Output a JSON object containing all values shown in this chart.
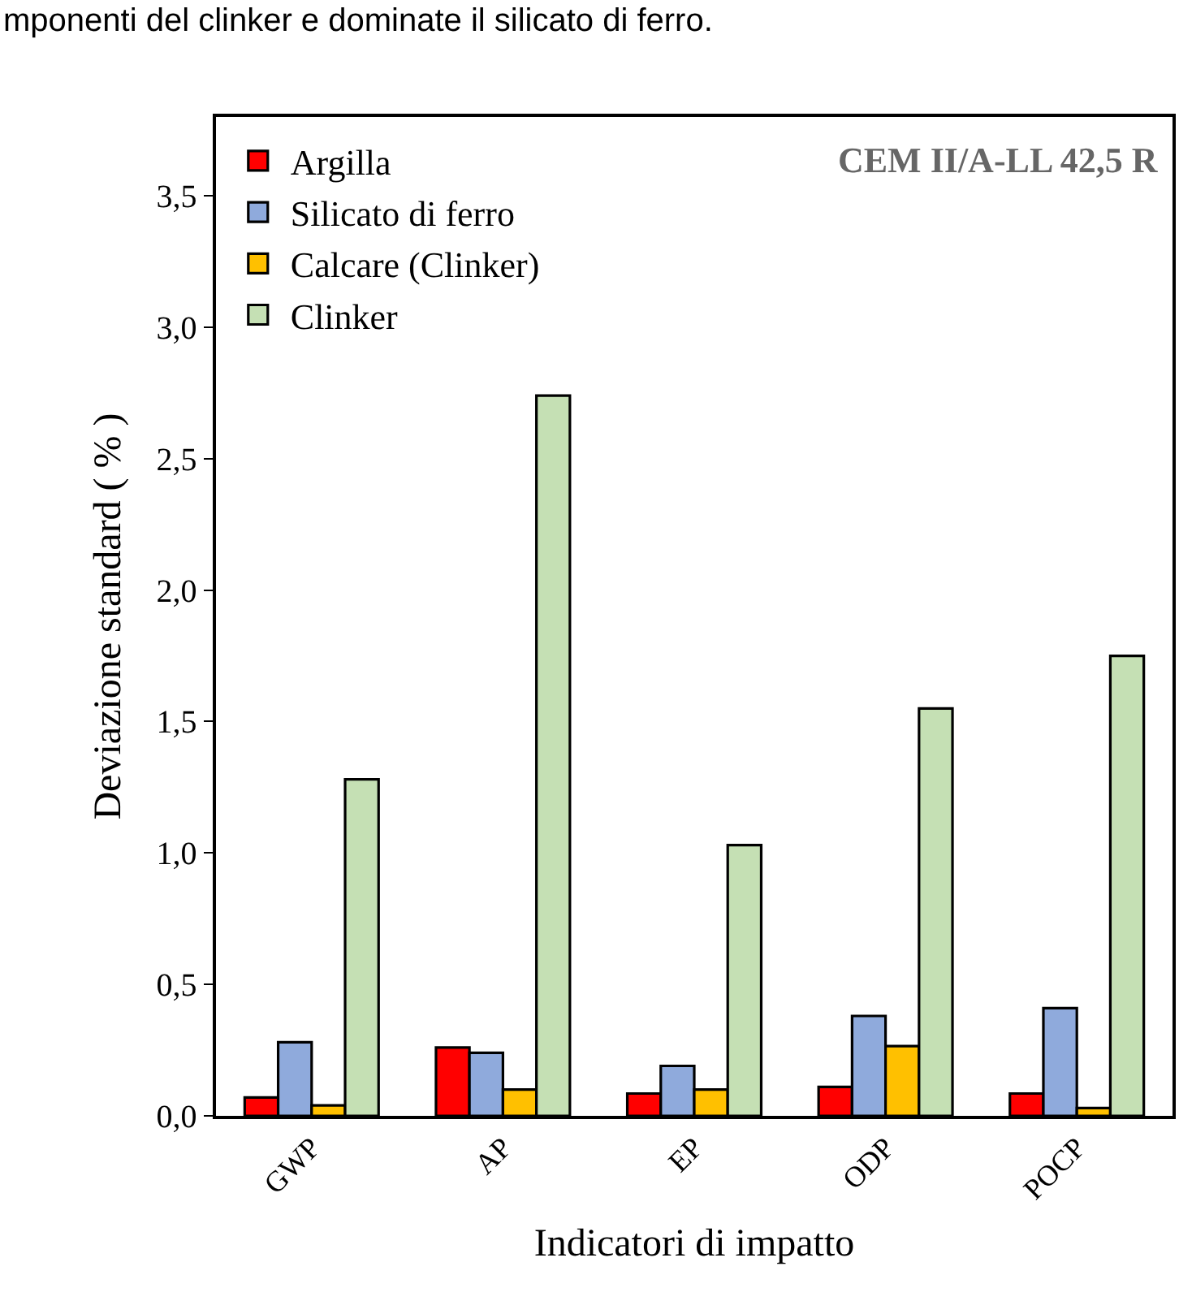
{
  "chart_data": {
    "type": "bar",
    "xlabel": "Indicatori di impatto",
    "ylabel": "Deviazione standard ( % )",
    "annotations": [
      "mponenti del clinker e dominate il silicato di ferro.",
      "CEM II/A-LL 42,5 R"
    ],
    "categories": [
      "GWP",
      "AP",
      "EP",
      "ODP",
      "POCP"
    ],
    "series": [
      {
        "name": "Argilla",
        "color": "#ff0000",
        "values": [
          0.07,
          0.26,
          0.085,
          0.11,
          0.085
        ]
      },
      {
        "name": "Silicato di ferro",
        "color": "#8faadc",
        "values": [
          0.28,
          0.24,
          0.19,
          0.38,
          0.41
        ]
      },
      {
        "name": "Calcare (Clinker)",
        "color": "#ffc000",
        "values": [
          0.04,
          0.1,
          0.1,
          0.265,
          0.03
        ]
      },
      {
        "name": "Clinker",
        "color": "#c5e0b4",
        "values": [
          1.28,
          2.74,
          1.03,
          1.55,
          1.75
        ]
      }
    ],
    "ylim": [
      0,
      3.8
    ],
    "yticks": [
      {
        "value": 0,
        "label": "0,0"
      },
      {
        "value": 0.5,
        "label": "0,5"
      },
      {
        "value": 1,
        "label": "1,0"
      },
      {
        "value": 1.5,
        "label": "1,5"
      },
      {
        "value": 2,
        "label": "2,0"
      },
      {
        "value": 2.5,
        "label": "2,5"
      },
      {
        "value": 3,
        "label": "3,0"
      },
      {
        "value": 3.5,
        "label": "3,5"
      }
    ],
    "legend": "top left"
  }
}
